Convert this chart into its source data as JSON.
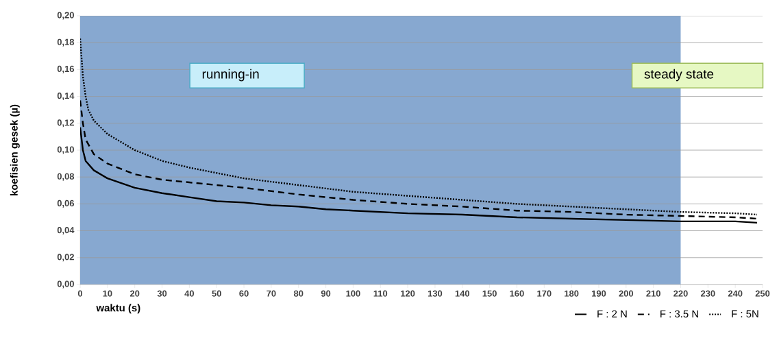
{
  "chart_data": {
    "type": "line",
    "xlabel": "waktu (s)",
    "ylabel": "koefisien gesek (µ)",
    "annotations": [
      "running-in",
      "steady state"
    ],
    "xlim": [
      0,
      250
    ],
    "xticks": [
      0,
      10,
      20,
      30,
      40,
      50,
      60,
      70,
      80,
      90,
      100,
      110,
      120,
      130,
      140,
      150,
      160,
      170,
      180,
      190,
      200,
      210,
      220,
      230,
      240,
      250
    ],
    "ylim": [
      0,
      0.2
    ],
    "yticks": [
      {
        "value": 0,
        "label": "0,00"
      },
      {
        "value": 0.02,
        "label": "0,02"
      },
      {
        "value": 0.04,
        "label": "0,04"
      },
      {
        "value": 0.06,
        "label": "0,06"
      },
      {
        "value": 0.08,
        "label": "0,08"
      },
      {
        "value": 0.1,
        "label": "0,10"
      },
      {
        "value": 0.12,
        "label": "0,12"
      },
      {
        "value": 0.14,
        "label": "0,14"
      },
      {
        "value": 0.16,
        "label": "0,16"
      },
      {
        "value": 0.18,
        "label": "0,18"
      },
      {
        "value": 0.2,
        "label": "0,20"
      }
    ],
    "grid": "y",
    "legend": "bottom right",
    "marker": "none",
    "bands": [
      {
        "axis": "x",
        "from": 0,
        "to": 220,
        "color": "#87a8d0"
      }
    ],
    "series": [
      {
        "name": "F : 2 N",
        "color": "#000000",
        "line_style": "solid",
        "x": [
          0,
          1,
          2,
          5,
          10,
          20,
          30,
          40,
          50,
          60,
          70,
          80,
          90,
          100,
          120,
          140,
          160,
          180,
          200,
          220,
          240,
          248
        ],
        "values": [
          0.117,
          0.1,
          0.092,
          0.085,
          0.079,
          0.072,
          0.068,
          0.065,
          0.062,
          0.061,
          0.059,
          0.058,
          0.056,
          0.055,
          0.053,
          0.052,
          0.05,
          0.049,
          0.048,
          0.047,
          0.047,
          0.046
        ]
      },
      {
        "name": "F : 3.5 N",
        "color": "#000000",
        "line_style": "dashed",
        "x": [
          0,
          1,
          2,
          5,
          10,
          20,
          30,
          40,
          50,
          60,
          80,
          100,
          120,
          140,
          160,
          180,
          200,
          220,
          240,
          248
        ],
        "values": [
          0.137,
          0.12,
          0.108,
          0.097,
          0.09,
          0.082,
          0.078,
          0.076,
          0.074,
          0.072,
          0.067,
          0.063,
          0.06,
          0.058,
          0.055,
          0.054,
          0.052,
          0.051,
          0.05,
          0.049
        ]
      },
      {
        "name": "F : 5N",
        "color": "#000000",
        "line_style": "dotted",
        "x": [
          0,
          1,
          2,
          3,
          5,
          10,
          20,
          30,
          40,
          50,
          60,
          80,
          100,
          120,
          140,
          160,
          180,
          200,
          220,
          240,
          248
        ],
        "values": [
          0.183,
          0.155,
          0.14,
          0.13,
          0.122,
          0.112,
          0.1,
          0.092,
          0.087,
          0.083,
          0.079,
          0.074,
          0.069,
          0.066,
          0.063,
          0.06,
          0.058,
          0.056,
          0.054,
          0.053,
          0.052
        ]
      }
    ]
  }
}
